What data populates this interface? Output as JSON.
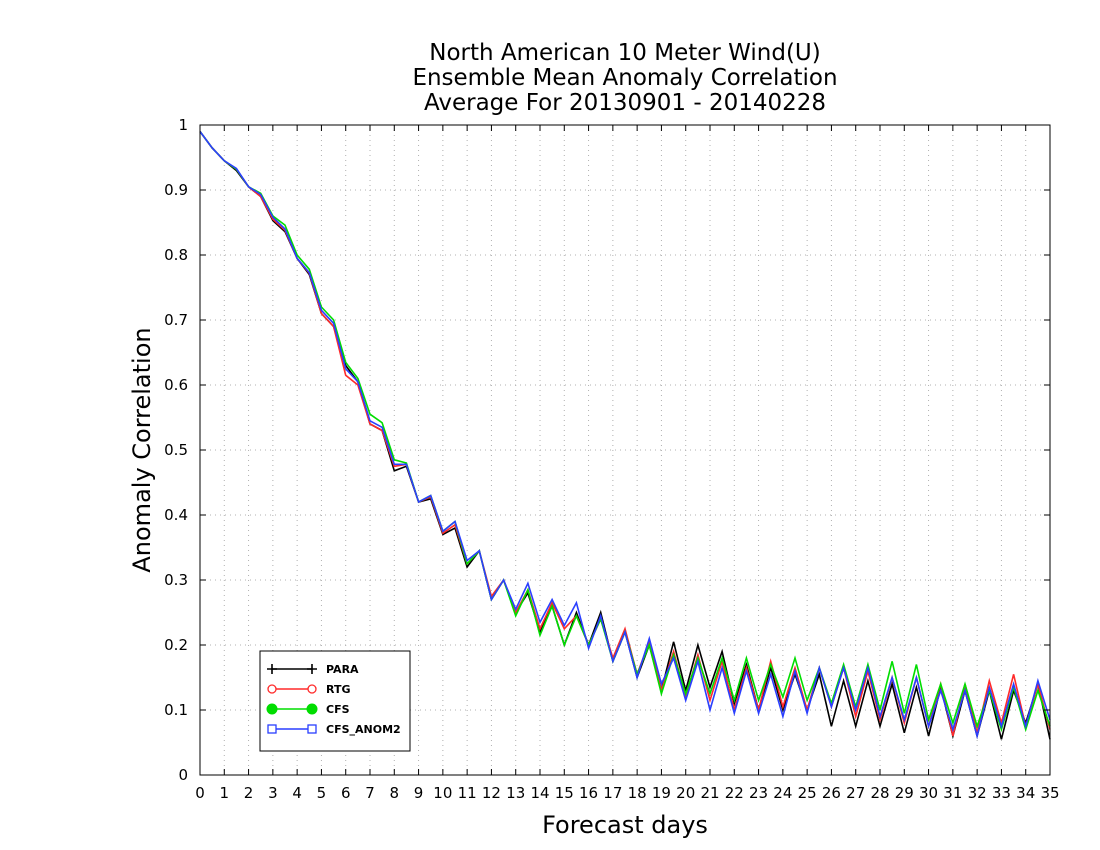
{
  "chart_data": {
    "type": "line",
    "title": [
      "North American 10 Meter Wind(U)",
      "Ensemble Mean Anomaly Correlation",
      "Average For 20130901 - 20140228"
    ],
    "xlabel": "Forecast days",
    "ylabel": "Anomaly Correlation",
    "xlim": [
      0,
      35
    ],
    "ylim": [
      0,
      1
    ],
    "x_ticks": [
      "0",
      "1",
      "2",
      "3",
      "4",
      "5",
      "6",
      "7",
      "8",
      "9",
      "10",
      "11",
      "12",
      "13",
      "14",
      "15",
      "16",
      "17",
      "18",
      "19",
      "20",
      "21",
      "22",
      "23",
      "24",
      "25",
      "26",
      "27",
      "28",
      "29",
      "30",
      "31",
      "32",
      "33",
      "34",
      "35"
    ],
    "y_ticks": [
      "0",
      "0.1",
      "0.2",
      "0.3",
      "0.4",
      "0.5",
      "0.6",
      "0.7",
      "0.8",
      "0.9",
      "1"
    ],
    "grid": true,
    "legend_position": "bottom-left",
    "x": [
      0,
      0.5,
      1,
      1.5,
      2,
      2.5,
      3,
      3.5,
      4,
      4.5,
      5,
      5.5,
      6,
      6.5,
      7,
      7.5,
      8,
      8.5,
      9,
      9.5,
      10,
      10.5,
      11,
      11.5,
      12,
      12.5,
      13,
      13.5,
      14,
      14.5,
      15,
      15.5,
      16,
      16.5,
      17,
      17.5,
      18,
      18.5,
      19,
      19.5,
      20,
      20.5,
      21,
      21.5,
      22,
      22.5,
      23,
      23.5,
      24,
      24.5,
      25,
      25.5,
      26,
      26.5,
      27,
      27.5,
      28,
      28.5,
      29,
      29.5,
      30,
      30.5,
      31,
      31.5,
      32,
      32.5,
      33,
      33.5,
      34,
      34.5,
      35
    ],
    "series": [
      {
        "name": "PARA",
        "color": "#000000",
        "marker": "plus",
        "values": [
          0.99,
          0.965,
          0.945,
          0.93,
          0.905,
          0.89,
          0.853,
          0.836,
          0.795,
          0.77,
          0.71,
          0.69,
          0.63,
          0.605,
          0.54,
          0.53,
          0.468,
          0.475,
          0.42,
          0.425,
          0.37,
          0.38,
          0.32,
          0.345,
          0.27,
          0.3,
          0.25,
          0.28,
          0.22,
          0.26,
          0.2,
          0.25,
          0.2,
          0.25,
          0.175,
          0.22,
          0.15,
          0.2,
          0.13,
          0.205,
          0.13,
          0.2,
          0.135,
          0.19,
          0.11,
          0.17,
          0.1,
          0.165,
          0.1,
          0.155,
          0.1,
          0.155,
          0.075,
          0.145,
          0.075,
          0.145,
          0.075,
          0.14,
          0.065,
          0.135,
          0.06,
          0.135,
          0.06,
          0.13,
          0.06,
          0.13,
          0.055,
          0.13,
          0.08,
          0.14,
          0.055
        ]
      },
      {
        "name": "RTG",
        "color": "#ff2a2a",
        "marker": "open-circle",
        "values": [
          0.99,
          0.965,
          0.945,
          0.932,
          0.905,
          0.89,
          0.855,
          0.838,
          0.795,
          0.772,
          0.71,
          0.69,
          0.615,
          0.6,
          0.54,
          0.53,
          0.475,
          0.478,
          0.42,
          0.428,
          0.372,
          0.385,
          0.325,
          0.345,
          0.275,
          0.3,
          0.25,
          0.285,
          0.225,
          0.265,
          0.225,
          0.245,
          0.2,
          0.24,
          0.18,
          0.225,
          0.155,
          0.205,
          0.13,
          0.19,
          0.12,
          0.185,
          0.115,
          0.175,
          0.1,
          0.165,
          0.1,
          0.175,
          0.105,
          0.165,
          0.1,
          0.165,
          0.105,
          0.165,
          0.09,
          0.16,
          0.085,
          0.15,
          0.08,
          0.15,
          0.075,
          0.14,
          0.06,
          0.14,
          0.065,
          0.145,
          0.08,
          0.155,
          0.075,
          0.14,
          0.07
        ]
      },
      {
        "name": "CFS",
        "color": "#00dd00",
        "marker": "filled-circle",
        "values": [
          0.99,
          0.965,
          0.945,
          0.932,
          0.905,
          0.895,
          0.86,
          0.846,
          0.8,
          0.778,
          0.72,
          0.7,
          0.635,
          0.61,
          0.555,
          0.542,
          0.485,
          0.48,
          0.42,
          0.43,
          0.375,
          0.39,
          0.325,
          0.345,
          0.27,
          0.3,
          0.245,
          0.285,
          0.215,
          0.26,
          0.2,
          0.245,
          0.2,
          0.24,
          0.175,
          0.22,
          0.155,
          0.2,
          0.125,
          0.185,
          0.125,
          0.18,
          0.125,
          0.18,
          0.115,
          0.18,
          0.115,
          0.17,
          0.12,
          0.18,
          0.115,
          0.165,
          0.11,
          0.17,
          0.105,
          0.17,
          0.1,
          0.175,
          0.095,
          0.17,
          0.085,
          0.14,
          0.08,
          0.14,
          0.075,
          0.13,
          0.07,
          0.135,
          0.07,
          0.13,
          0.075
        ]
      },
      {
        "name": "CFS_ANOM2",
        "color": "#2a3fff",
        "marker": "open-square",
        "values": [
          0.99,
          0.965,
          0.945,
          0.933,
          0.905,
          0.893,
          0.858,
          0.84,
          0.795,
          0.773,
          0.715,
          0.695,
          0.625,
          0.605,
          0.545,
          0.535,
          0.478,
          0.478,
          0.42,
          0.43,
          0.375,
          0.39,
          0.33,
          0.345,
          0.27,
          0.3,
          0.255,
          0.295,
          0.235,
          0.27,
          0.23,
          0.265,
          0.195,
          0.245,
          0.175,
          0.22,
          0.15,
          0.21,
          0.14,
          0.18,
          0.115,
          0.175,
          0.1,
          0.165,
          0.095,
          0.16,
          0.095,
          0.155,
          0.09,
          0.16,
          0.095,
          0.165,
          0.105,
          0.165,
          0.1,
          0.165,
          0.09,
          0.15,
          0.085,
          0.15,
          0.075,
          0.13,
          0.07,
          0.13,
          0.06,
          0.135,
          0.075,
          0.14,
          0.075,
          0.145,
          0.085
        ]
      }
    ]
  }
}
